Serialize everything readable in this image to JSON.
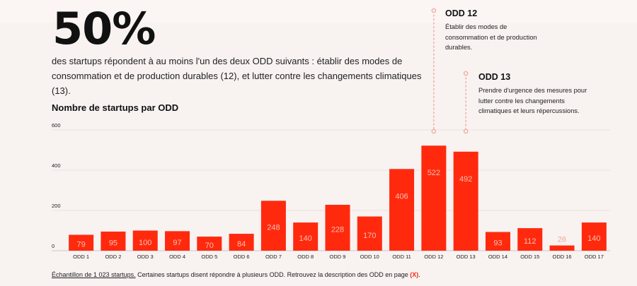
{
  "headline": {
    "stat": "50%",
    "text": "des startups répondent à au moins l'un des deux ODD suivants : établir des modes de consommation et de production durables (12), et lutter contre les changements climatiques (13)."
  },
  "section_title": "Nombre de startups par ODD",
  "callouts": [
    {
      "title": "ODD 12",
      "text": "Établir des modes de consommation et de production durables."
    },
    {
      "title": "ODD 13",
      "text": "Prendre d'urgence des mesures pour lutter contre les changements climatiques et leurs répercussions."
    }
  ],
  "chart_data": {
    "type": "bar",
    "categories": [
      "ODD 1",
      "ODD 2",
      "ODD 3",
      "ODD 4",
      "ODD 5",
      "ODD 6",
      "ODD 7",
      "ODD 8",
      "ODD 9",
      "ODD 10",
      "ODD 11",
      "ODD 12",
      "ODD 13",
      "ODD 14",
      "ODD 15",
      "ODD 16",
      "ODD 17"
    ],
    "values": [
      79,
      95,
      100,
      97,
      70,
      84,
      248,
      140,
      228,
      170,
      406,
      522,
      492,
      93,
      112,
      26,
      140
    ],
    "ylim": [
      0,
      600
    ],
    "yticks": [
      "0",
      "200",
      "400",
      "600"
    ],
    "grid": true,
    "bar_color": "#ff2a0e",
    "label_color": "#f7c0b2",
    "title": "",
    "xlabel": "",
    "ylabel": ""
  },
  "footnote": {
    "underlined": "Échantillon de 1 023 startups.",
    "text": " Certaines startups disent répondre à plusieurs ODD. Retrouvez la description des ODD en page ",
    "page_ref": "(X)",
    "end": "."
  }
}
